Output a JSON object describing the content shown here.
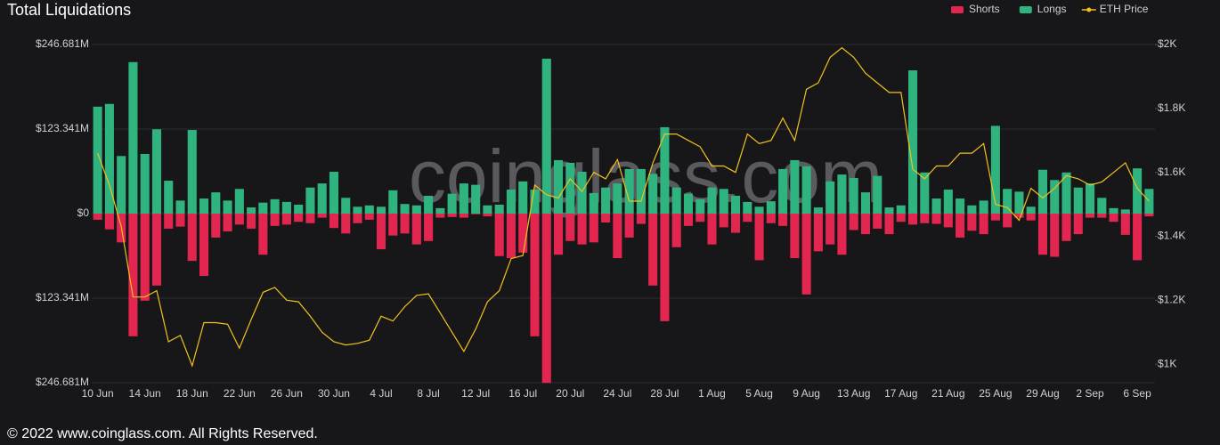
{
  "chart_data": {
    "type": "bar",
    "title": "Total Liquidations",
    "watermark": "coinglass.com",
    "footer": "© 2022 www.coinglass.com. All Rights Reserved.",
    "legend": "top-right",
    "grid": true,
    "categories": [
      "10 Jun",
      null,
      null,
      null,
      "14 Jun",
      null,
      null,
      null,
      "18 Jun",
      null,
      null,
      null,
      "22 Jun",
      null,
      null,
      null,
      "26 Jun",
      null,
      null,
      null,
      "30 Jun",
      null,
      null,
      null,
      "4 Jul",
      null,
      null,
      null,
      "8 Jul",
      null,
      null,
      null,
      "12 Jul",
      null,
      null,
      null,
      "16 Jul",
      null,
      null,
      null,
      "20 Jul",
      null,
      null,
      null,
      "24 Jul",
      null,
      null,
      null,
      "28 Jul",
      null,
      null,
      null,
      "1 Aug",
      null,
      null,
      null,
      "5 Aug",
      null,
      null,
      null,
      "9 Aug",
      null,
      null,
      null,
      "13 Aug",
      null,
      null,
      null,
      "17 Aug",
      null,
      null,
      null,
      "21 Aug",
      null,
      null,
      null,
      "25 Aug",
      null,
      null,
      null,
      "29 Aug",
      null,
      null,
      null,
      "2 Sep",
      null,
      null,
      null,
      "6 Sep",
      null
    ],
    "series": [
      {
        "name": "Shorts",
        "color": "#e3264f",
        "type": "bar",
        "axis": "y",
        "values": [
          -9,
          -23,
          -42,
          -179,
          -127,
          -105,
          -22,
          -19,
          -69,
          -91,
          -35,
          -26,
          -16,
          -22,
          -60,
          -18,
          -16,
          -12,
          -14,
          -6,
          -21,
          -29,
          -14,
          -9,
          -52,
          -32,
          -29,
          -45,
          -40,
          -6,
          -5,
          -6,
          -1,
          -4,
          -62,
          -65,
          -57,
          -179,
          -247,
          -60,
          -40,
          -45,
          -42,
          -13,
          -65,
          -35,
          -15,
          -105,
          -157,
          -49,
          -18,
          -12,
          -45,
          -20,
          -28,
          -12,
          -68,
          -14,
          -18,
          -65,
          -118,
          -55,
          -45,
          -60,
          -24,
          -30,
          -22,
          -30,
          -12,
          -16,
          -14,
          -15,
          -20,
          -35,
          -25,
          -30,
          -10,
          -20,
          -6,
          -10,
          -60,
          -63,
          -40,
          -30,
          -6,
          -6,
          -12,
          -31,
          -68,
          -4
        ]
      },
      {
        "name": "Longs",
        "color": "#2fb47f",
        "type": "bar",
        "axis": "y",
        "values": [
          156,
          160,
          84,
          221,
          87,
          123,
          48,
          19,
          122,
          22,
          31,
          19,
          36,
          9,
          16,
          21,
          17,
          13,
          38,
          44,
          61,
          23,
          10,
          12,
          10,
          34,
          14,
          12,
          26,
          8,
          29,
          44,
          42,
          12,
          13,
          35,
          47,
          35,
          226,
          78,
          74,
          61,
          30,
          38,
          44,
          65,
          65,
          58,
          126,
          38,
          29,
          21,
          38,
          36,
          26,
          17,
          10,
          18,
          65,
          78,
          69,
          9,
          47,
          57,
          52,
          31,
          55,
          9,
          12,
          209,
          60,
          22,
          35,
          22,
          12,
          19,
          128,
          36,
          32,
          10,
          64,
          49,
          60,
          38,
          44,
          23,
          8,
          6,
          66,
          36
        ]
      },
      {
        "name": "ETH Price",
        "color": "#f2c21b",
        "type": "line",
        "axis": "y2",
        "values": [
          1660,
          1560,
          1430,
          1210,
          1210,
          1230,
          1070,
          1090,
          995,
          1130,
          1130,
          1125,
          1050,
          1140,
          1225,
          1240,
          1200,
          1195,
          1150,
          1100,
          1070,
          1060,
          1065,
          1075,
          1150,
          1135,
          1180,
          1215,
          1220,
          1160,
          1100,
          1040,
          1110,
          1195,
          1230,
          1330,
          1340,
          1560,
          1530,
          1520,
          1580,
          1540,
          1600,
          1580,
          1640,
          1510,
          1510,
          1630,
          1720,
          1720,
          1700,
          1680,
          1620,
          1620,
          1600,
          1720,
          1690,
          1700,
          1770,
          1700,
          1860,
          1880,
          1960,
          1990,
          1960,
          1910,
          1880,
          1850,
          1850,
          1610,
          1580,
          1620,
          1620,
          1660,
          1660,
          1690,
          1500,
          1490,
          1450,
          1550,
          1520,
          1550,
          1590,
          1580,
          1560,
          1570,
          1600,
          1630,
          1550,
          1510
        ]
      }
    ],
    "ylim": [
      -246.681,
      246.681
    ],
    "yticks": [
      {
        "value": 246.681,
        "label": "$246.681M"
      },
      {
        "value": 123.341,
        "label": "$123.341M"
      },
      {
        "value": 0,
        "label": "$0"
      },
      {
        "value": -123.341,
        "label": "$123.341M"
      },
      {
        "value": -246.681,
        "label": "$246.681M"
      }
    ],
    "y2lim": [
      942,
      2000
    ],
    "y2ticks": [
      {
        "value": 2000,
        "label": "$2K"
      },
      {
        "value": 1800,
        "label": "$1.8K"
      },
      {
        "value": 1600,
        "label": "$1.6K"
      },
      {
        "value": 1400,
        "label": "$1.4K"
      },
      {
        "value": 1200,
        "label": "$1.2K"
      },
      {
        "value": 1000,
        "label": "$1K"
      }
    ]
  }
}
